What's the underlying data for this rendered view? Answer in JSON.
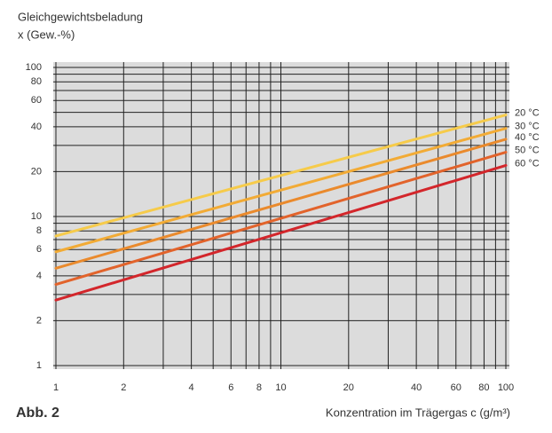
{
  "chart_data": {
    "type": "line",
    "title": "Gleichgewichtsbeladung",
    "y_label": "x (Gew.-%)",
    "x_label": "Konzentration im Trägergas c (g/m³)",
    "figure_label": "Abb. 2",
    "log_x": true,
    "log_y": true,
    "grid": true,
    "xlim": [
      1,
      100
    ],
    "ylim": [
      1,
      100
    ],
    "xticks": [
      1,
      2,
      4,
      6,
      8,
      10,
      20,
      40,
      60,
      80,
      100
    ],
    "yticks": [
      1,
      2,
      4,
      6,
      8,
      10,
      20,
      40,
      60,
      80,
      100
    ],
    "x_minor_grid": [
      3,
      5,
      7,
      9,
      30,
      50,
      70,
      90
    ],
    "y_minor_grid": [
      3,
      5,
      7,
      9,
      30,
      50,
      70,
      90
    ],
    "x": [
      1,
      100
    ],
    "series": [
      {
        "name": "20 °C",
        "color": "#f6cb4a",
        "values": [
          7.4,
          48
        ]
      },
      {
        "name": "30 °C",
        "color": "#f2ab35",
        "values": [
          5.8,
          39
        ]
      },
      {
        "name": "40 °C",
        "color": "#ea8a2c",
        "values": [
          4.5,
          33
        ]
      },
      {
        "name": "50 °C",
        "color": "#e2632b",
        "values": [
          3.5,
          27
        ]
      },
      {
        "name": "60 °C",
        "color": "#d3262b",
        "values": [
          2.75,
          22
        ]
      }
    ]
  }
}
